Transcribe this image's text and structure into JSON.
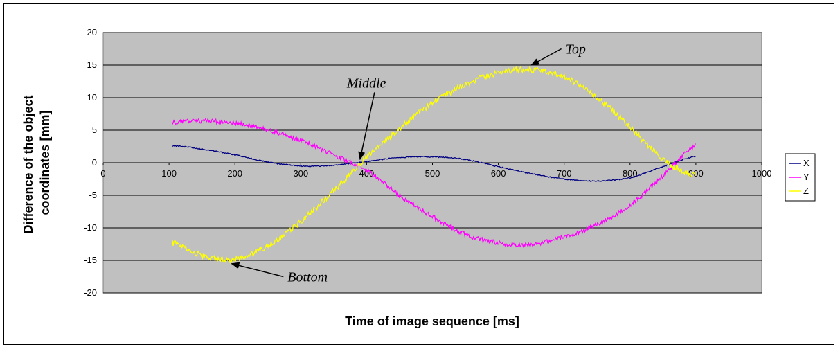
{
  "chart_data": {
    "type": "line",
    "title": "",
    "xlabel": "Time of image sequence [ms]",
    "ylabel_lines": [
      "Difference of the object",
      "coordinates [mm]"
    ],
    "xlim": [
      0,
      1000
    ],
    "ylim": [
      -20,
      20
    ],
    "x_ticks": [
      0,
      100,
      200,
      300,
      400,
      500,
      600,
      700,
      800,
      900,
      1000
    ],
    "y_ticks": [
      20,
      15,
      10,
      5,
      0,
      -5,
      -10,
      -15,
      -20
    ],
    "grid": "horizontal",
    "plot_background": "#c0c0c0",
    "legend_position": "right",
    "series": [
      {
        "name": "X",
        "color": "#000080",
        "x": [
          105,
          150,
          200,
          250,
          300,
          350,
          400,
          450,
          500,
          550,
          600,
          650,
          700,
          750,
          800,
          850,
          900
        ],
        "y": [
          2.6,
          2.1,
          1.2,
          0.1,
          -0.5,
          -0.4,
          0.2,
          0.8,
          0.9,
          0.5,
          -0.6,
          -1.7,
          -2.5,
          -2.8,
          -2.3,
          -0.6,
          1.0
        ]
      },
      {
        "name": "Y",
        "color": "#ff00ff",
        "x": [
          105,
          150,
          200,
          250,
          300,
          350,
          400,
          450,
          500,
          550,
          600,
          650,
          700,
          750,
          800,
          850,
          900
        ],
        "y": [
          6.2,
          6.4,
          6.1,
          5.0,
          3.4,
          1.2,
          -1.2,
          -5.0,
          -8.3,
          -11.0,
          -12.3,
          -12.5,
          -11.4,
          -9.5,
          -6.5,
          -2.0,
          2.7
        ]
      },
      {
        "name": "Z",
        "color": "#ffff00",
        "x": [
          105,
          150,
          200,
          250,
          300,
          350,
          400,
          450,
          500,
          550,
          600,
          650,
          700,
          750,
          800,
          850,
          900
        ],
        "y": [
          -12.3,
          -14.3,
          -14.8,
          -12.8,
          -9.0,
          -4.3,
          0.8,
          5.2,
          9.2,
          12.0,
          13.8,
          14.3,
          13.2,
          10.0,
          5.5,
          0.5,
          -2.0
        ]
      }
    ],
    "annotations": [
      {
        "text": "Top",
        "label_x": 702,
        "label_y": 17.5,
        "arrow_to_x": 650,
        "arrow_to_y": 15.0
      },
      {
        "text": "Middle",
        "label_x": 370,
        "label_y": 12.3,
        "arrow_to_x": 390,
        "arrow_to_y": 0.5
      },
      {
        "text": "Bottom",
        "label_x": 280,
        "label_y": -17.5,
        "arrow_to_x": 195,
        "arrow_to_y": -15.5
      }
    ]
  }
}
